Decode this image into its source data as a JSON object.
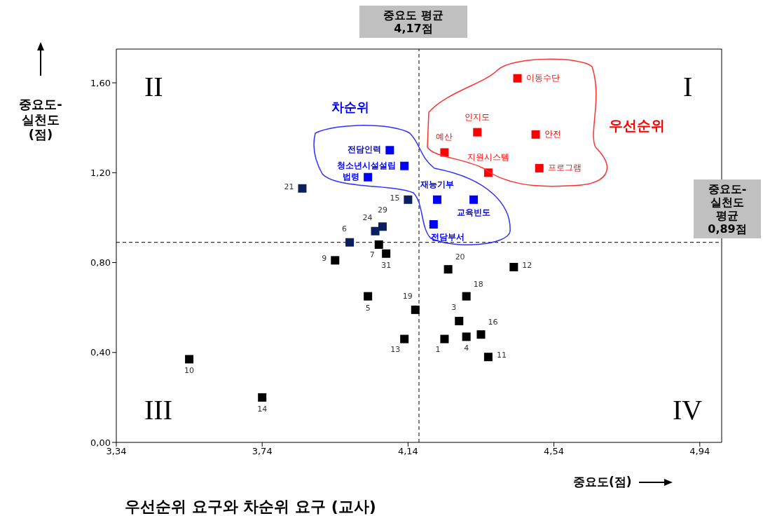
{
  "chart_data": {
    "type": "scatter",
    "title": "우선순위 요구와 차순위 요구 (교사)",
    "xlabel": "중요도(점)",
    "ylabel": "중요도-실천도 (점)",
    "xlim": [
      3.34,
      5.0
    ],
    "xticks": [
      {
        "value": 3.34,
        "label": "3,34"
      },
      {
        "value": 3.74,
        "label": "3,74"
      },
      {
        "value": 4.14,
        "label": "4,14"
      },
      {
        "value": 4.54,
        "label": "4,54"
      },
      {
        "value": 4.94,
        "label": "4,94"
      }
    ],
    "ylim": [
      0,
      1.75
    ],
    "yticks": [
      {
        "value": 0,
        "label": "0,00"
      },
      {
        "value": 0.4,
        "label": "0,40"
      },
      {
        "value": 0.8,
        "label": "0,80"
      },
      {
        "value": 1.2,
        "label": "1,20"
      },
      {
        "value": 1.6,
        "label": "1,60"
      }
    ],
    "grid": false,
    "legend": false,
    "marker": "square",
    "series": [
      {
        "name": "우선순위",
        "color": "#ff0000",
        "x": [
          4.44,
          4.33,
          4.24,
          4.49,
          4.36,
          4.5
        ],
        "values": [
          1.62,
          1.38,
          1.29,
          1.37,
          1.2,
          1.22
        ]
      },
      {
        "name": "차순위",
        "color": "#0000ff",
        "x": [
          4.09,
          4.13,
          4.03,
          4.22,
          4.32,
          4.21
        ],
        "values": [
          1.3,
          1.23,
          1.18,
          1.08,
          1.08,
          0.97
        ]
      },
      {
        "color": "#0a1f5c",
        "x": [
          3.85,
          4.14,
          4.07,
          4.05,
          3.98
        ],
        "values": [
          1.13,
          1.08,
          0.96,
          0.94,
          0.89
        ]
      },
      {
        "color": "#000000",
        "x": [
          4.06,
          4.08,
          3.94,
          4.25,
          4.43,
          4.3,
          4.03,
          4.16,
          4.28,
          4.34,
          4.3,
          4.24,
          4.13,
          4.36,
          3.54,
          3.74
        ],
        "values": [
          0.88,
          0.84,
          0.81,
          0.77,
          0.78,
          0.65,
          0.65,
          0.59,
          0.54,
          0.48,
          0.47,
          0.46,
          0.46,
          0.38,
          0.37,
          0.2
        ]
      }
    ],
    "ref_lines": [
      {
        "axis": "x",
        "value": 4.17,
        "label": "중요도 평균\n4,17점",
        "color": "#000000",
        "line_style": "dashed"
      },
      {
        "axis": "y",
        "value": 0.89,
        "label": "중요도-\n실천도\n평균\n0,89점",
        "color": "#000000",
        "line_style": "dashed"
      }
    ],
    "annotations": [
      "I",
      "II",
      "III",
      "IV",
      {
        "text": "이동수단",
        "x": 4.44,
        "y": 1.62
      },
      {
        "text": "인지도",
        "x": 4.33,
        "y": 1.38
      },
      {
        "text": "예산",
        "x": 4.24,
        "y": 1.29
      },
      {
        "text": "안전",
        "x": 4.49,
        "y": 1.37
      },
      {
        "text": "지원시스템",
        "x": 4.36,
        "y": 1.2
      },
      {
        "text": "프로그램",
        "x": 4.5,
        "y": 1.22
      },
      {
        "text": "전담인력",
        "x": 4.09,
        "y": 1.3
      },
      {
        "text": "청소년시설설립",
        "x": 4.13,
        "y": 1.23
      },
      {
        "text": "법령",
        "x": 4.03,
        "y": 1.18
      },
      {
        "text": "재능기부",
        "x": 4.22,
        "y": 1.08
      },
      {
        "text": "교육빈도",
        "x": 4.32,
        "y": 1.08
      },
      {
        "text": "전담부서",
        "x": 4.21,
        "y": 0.97
      },
      {
        "text": "21",
        "x": 3.85,
        "y": 1.13
      },
      {
        "text": "15",
        "x": 4.14,
        "y": 1.08
      },
      {
        "text": "29",
        "x": 4.07,
        "y": 0.96
      },
      {
        "text": "24",
        "x": 4.05,
        "y": 0.94
      },
      {
        "text": "6",
        "x": 3.98,
        "y": 0.89
      },
      {
        "text": "7",
        "x": 4.06,
        "y": 0.88
      },
      {
        "text": "31",
        "x": 4.08,
        "y": 0.84
      },
      {
        "text": "9",
        "x": 3.94,
        "y": 0.81
      },
      {
        "text": "20",
        "x": 4.25,
        "y": 0.77
      },
      {
        "text": "12",
        "x": 4.43,
        "y": 0.78
      },
      {
        "text": "18",
        "x": 4.3,
        "y": 0.65
      },
      {
        "text": "5",
        "x": 4.03,
        "y": 0.65
      },
      {
        "text": "19",
        "x": 4.16,
        "y": 0.59
      },
      {
        "text": "3",
        "x": 4.28,
        "y": 0.54
      },
      {
        "text": "16",
        "x": 4.34,
        "y": 0.48
      },
      {
        "text": "4",
        "x": 4.3,
        "y": 0.47
      },
      {
        "text": "1",
        "x": 4.24,
        "y": 0.46
      },
      {
        "text": "13",
        "x": 4.13,
        "y": 0.46
      },
      {
        "text": "11",
        "x": 4.36,
        "y": 0.38
      },
      {
        "text": "10",
        "x": 3.54,
        "y": 0.37
      },
      {
        "text": "14",
        "x": 3.74,
        "y": 0.2
      }
    ]
  }
}
